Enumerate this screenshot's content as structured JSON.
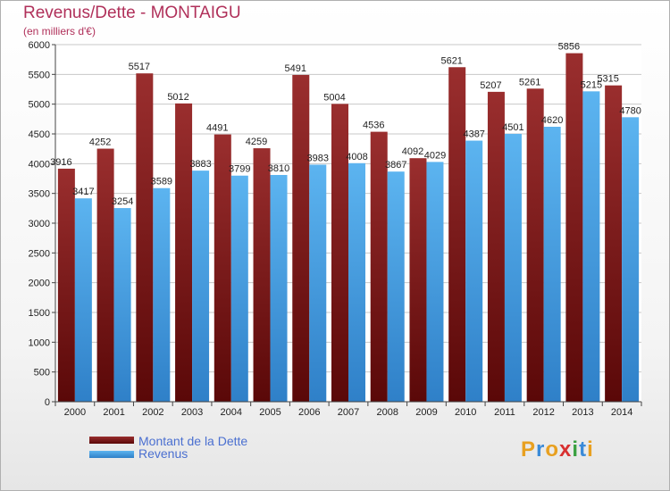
{
  "chart_data": {
    "type": "bar",
    "title": "Revenus/Dette - MONTAIGU",
    "subtitle": "(en milliers d'€)",
    "categories": [
      "2000",
      "2001",
      "2002",
      "2003",
      "2004",
      "2005",
      "2006",
      "2007",
      "2008",
      "2009",
      "2010",
      "2011",
      "2012",
      "2013",
      "2014"
    ],
    "series": [
      {
        "name": "Montant de la Dette",
        "color": "#7a1a1a",
        "values": [
          3916,
          4252,
          5517,
          5012,
          4491,
          4259,
          5491,
          5004,
          4536,
          4092,
          5621,
          5207,
          5261,
          5856,
          5315
        ]
      },
      {
        "name": "Revenus",
        "color": "#4aa3e6",
        "values": [
          3417,
          3254,
          3589,
          3883,
          3799,
          3810,
          3983,
          4008,
          3867,
          4029,
          4387,
          4501,
          4620,
          5215,
          4780
        ]
      }
    ],
    "ylim": [
      0,
      6000
    ],
    "yticks": [
      0,
      500,
      1000,
      1500,
      2000,
      2500,
      3000,
      3500,
      4000,
      4500,
      5000,
      5500,
      6000
    ],
    "grid": true,
    "legend": "bottom-left"
  },
  "logo": {
    "text": "Proxiti",
    "letters": [
      "P",
      "r",
      "o",
      "x",
      "i",
      "t",
      "i"
    ],
    "colors": [
      "#e8a020",
      "#3a8ad8",
      "#e8a020",
      "#d83030",
      "#3aa040",
      "#3a8ad8",
      "#e8a020"
    ]
  }
}
